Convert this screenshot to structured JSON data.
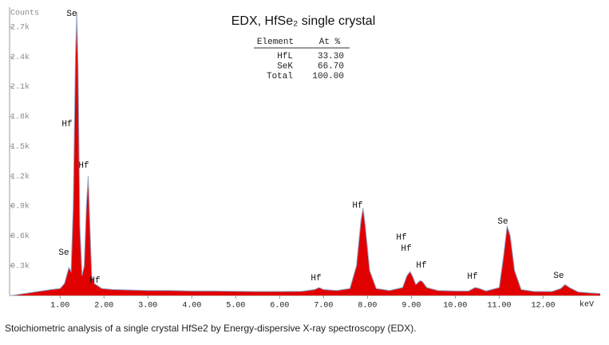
{
  "chart_data": {
    "type": "area",
    "title": "EDX, HfSe₂ single crystal",
    "y_label": "Counts",
    "x_label": "keV",
    "color": "#e00000",
    "line_color": "#8fa6c8",
    "xlim": [
      -0.15,
      13.3
    ],
    "ylim": [
      0,
      2900
    ],
    "xticks": [
      {
        "value": 1,
        "label": "1.00"
      },
      {
        "value": 2,
        "label": "2.00"
      },
      {
        "value": 3,
        "label": "3.00"
      },
      {
        "value": 4,
        "label": "4.00"
      },
      {
        "value": 5,
        "label": "5.00"
      },
      {
        "value": 6,
        "label": "6.00"
      },
      {
        "value": 7,
        "label": "7.00"
      },
      {
        "value": 8,
        "label": "8.00"
      },
      {
        "value": 9,
        "label": "9.00"
      },
      {
        "value": 10,
        "label": "10.00"
      },
      {
        "value": 11,
        "label": "11.00"
      },
      {
        "value": 12,
        "label": "12.00"
      }
    ],
    "yticks": [
      {
        "value": 300,
        "label": "0.3k"
      },
      {
        "value": 600,
        "label": "0.6k"
      },
      {
        "value": 900,
        "label": "0.9k"
      },
      {
        "value": 1200,
        "label": "1.2k"
      },
      {
        "value": 1500,
        "label": "1.5k"
      },
      {
        "value": 1800,
        "label": "1.8k"
      },
      {
        "value": 2100,
        "label": "2.1k"
      },
      {
        "value": 2400,
        "label": "2.4k"
      },
      {
        "value": 2700,
        "label": "2.7k"
      }
    ],
    "x": [
      -0.1,
      0.2,
      0.5,
      0.8,
      1.0,
      1.1,
      1.15,
      1.2,
      1.25,
      1.3,
      1.35,
      1.38,
      1.41,
      1.45,
      1.5,
      1.55,
      1.6,
      1.64,
      1.68,
      1.72,
      1.78,
      1.85,
      1.95,
      2.2,
      2.6,
      3.0,
      3.5,
      4.0,
      4.5,
      5.0,
      5.5,
      6.0,
      6.5,
      6.8,
      6.9,
      7.0,
      7.3,
      7.6,
      7.75,
      7.85,
      7.9,
      7.95,
      8.05,
      8.2,
      8.5,
      8.8,
      8.9,
      8.97,
      9.02,
      9.1,
      9.2,
      9.25,
      9.35,
      9.6,
      10.0,
      10.3,
      10.45,
      10.55,
      10.7,
      11.0,
      11.1,
      11.18,
      11.25,
      11.35,
      11.5,
      11.8,
      12.2,
      12.4,
      12.5,
      12.6,
      12.8,
      13.1,
      13.3
    ],
    "values": [
      0,
      20,
      40,
      60,
      70,
      120,
      200,
      280,
      240,
      900,
      2400,
      2850,
      2300,
      700,
      200,
      300,
      900,
      1200,
      700,
      200,
      120,
      100,
      70,
      60,
      55,
      50,
      50,
      45,
      45,
      42,
      40,
      40,
      42,
      60,
      80,
      60,
      50,
      70,
      300,
      750,
      880,
      700,
      250,
      70,
      50,
      80,
      200,
      240,
      200,
      110,
      150,
      140,
      80,
      50,
      45,
      45,
      80,
      70,
      45,
      80,
      400,
      700,
      600,
      250,
      60,
      40,
      40,
      70,
      110,
      80,
      35,
      25,
      20
    ],
    "annotations": [
      "Se",
      "Hf",
      "Hf",
      "Se",
      "Hf",
      "Hf",
      "Hf",
      "Hf",
      "Hf",
      "Hf",
      "Hf",
      "Se",
      "Se"
    ],
    "table": {
      "columns": [
        "Element",
        "At %"
      ],
      "rows": [
        [
          "HfL",
          "33.30"
        ],
        [
          "SeK",
          "66.70"
        ],
        [
          "Total",
          "100.00"
        ]
      ]
    }
  },
  "caption": "Stoichiometric analysis of a single crystal HfSe2 by Energy-dispersive X-ray spectroscopy (EDX)."
}
